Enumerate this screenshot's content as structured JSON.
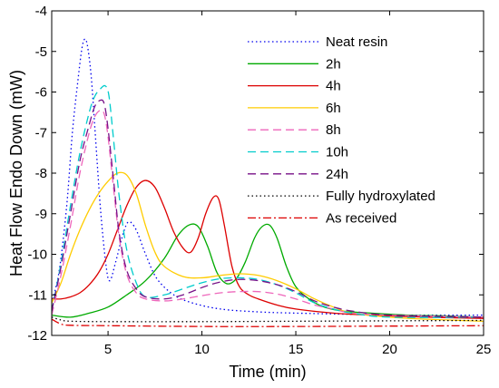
{
  "chart_data": {
    "type": "line",
    "xlabel": "Time (min)",
    "ylabel": "Heat Flow Endo Down (mW)",
    "xlim": [
      2,
      25
    ],
    "ylim": [
      -12,
      -4
    ],
    "xticks": [
      5,
      10,
      15,
      20,
      25
    ],
    "yticks": [
      -12,
      -11,
      -10,
      -9,
      -8,
      -7,
      -6,
      -5,
      -4
    ],
    "grid": false,
    "legend_position": "top-right",
    "series": [
      {
        "name": "Neat resin",
        "color": "#0000ee",
        "dash": "dotted",
        "x": [
          2,
          2.4,
          2.8,
          3.1,
          3.4,
          3.6,
          3.75,
          3.9,
          4.1,
          4.3,
          4.6,
          4.9,
          5.1,
          5.4,
          5.8,
          6.1,
          6.5,
          7.0,
          7.6,
          8.5,
          9.5,
          11,
          13,
          15,
          18,
          21,
          25
        ],
        "y": [
          -11.2,
          -10.4,
          -8.8,
          -7.0,
          -5.7,
          -4.95,
          -4.7,
          -4.85,
          -5.6,
          -6.9,
          -8.9,
          -10.3,
          -10.65,
          -10.2,
          -9.5,
          -9.2,
          -9.4,
          -10.0,
          -10.6,
          -11.0,
          -11.2,
          -11.35,
          -11.42,
          -11.45,
          -11.48,
          -11.5,
          -11.5
        ]
      },
      {
        "name": "2h",
        "color": "#00aa00",
        "dash": "solid",
        "x": [
          2,
          3,
          4,
          5,
          6,
          7,
          8,
          8.7,
          9.3,
          9.8,
          10.3,
          10.8,
          11.3,
          11.8,
          12.3,
          12.8,
          13.2,
          13.6,
          14.0,
          14.5,
          15,
          15.7,
          16.5,
          17.5,
          19,
          21,
          23,
          25
        ],
        "y": [
          -11.5,
          -11.55,
          -11.45,
          -11.3,
          -11.0,
          -10.65,
          -10.1,
          -9.55,
          -9.28,
          -9.32,
          -9.8,
          -10.45,
          -10.72,
          -10.62,
          -10.2,
          -9.6,
          -9.32,
          -9.28,
          -9.6,
          -10.3,
          -10.8,
          -11.1,
          -11.3,
          -11.4,
          -11.45,
          -11.5,
          -11.52,
          -11.55
        ]
      },
      {
        "name": "4h",
        "color": "#dd0000",
        "dash": "solid",
        "x": [
          2,
          2.5,
          3,
          3.5,
          4,
          4.5,
          5,
          5.5,
          6,
          6.5,
          7,
          7.5,
          8,
          8.5,
          9,
          9.4,
          9.8,
          10.2,
          10.6,
          10.9,
          11.2,
          11.6,
          12,
          12.5,
          13,
          14,
          15,
          17,
          19,
          22,
          25
        ],
        "y": [
          -11.1,
          -11.1,
          -11.05,
          -10.95,
          -10.75,
          -10.45,
          -10.0,
          -9.4,
          -8.8,
          -8.35,
          -8.18,
          -8.35,
          -8.85,
          -9.45,
          -9.85,
          -9.95,
          -9.6,
          -9.0,
          -8.6,
          -8.65,
          -9.3,
          -10.3,
          -10.8,
          -11.0,
          -11.1,
          -11.25,
          -11.35,
          -11.45,
          -11.5,
          -11.55,
          -11.58
        ]
      },
      {
        "name": "6h",
        "color": "#ffcc00",
        "dash": "solid",
        "x": [
          2,
          2.5,
          3,
          3.5,
          4,
          4.5,
          5,
          5.5,
          6,
          6.5,
          7,
          7.5,
          8,
          9,
          10,
          11,
          12,
          13,
          14,
          15,
          16,
          17,
          18,
          20,
          22,
          25
        ],
        "y": [
          -11.2,
          -10.7,
          -10.0,
          -9.4,
          -8.9,
          -8.5,
          -8.2,
          -8.0,
          -8.05,
          -8.5,
          -9.3,
          -9.95,
          -10.3,
          -10.55,
          -10.58,
          -10.52,
          -10.48,
          -10.52,
          -10.65,
          -10.85,
          -11.1,
          -11.3,
          -11.45,
          -11.55,
          -11.6,
          -11.65
        ]
      },
      {
        "name": "8h",
        "color": "#ee66bb",
        "dash": "dashed",
        "x": [
          2,
          2.5,
          3,
          3.5,
          4,
          4.3,
          4.6,
          4.8,
          5.0,
          5.3,
          5.6,
          6.0,
          6.5,
          7,
          8,
          9,
          10,
          11,
          12,
          13,
          14,
          15,
          16,
          17,
          18,
          20,
          25
        ],
        "y": [
          -11.5,
          -10.5,
          -9.3,
          -8.0,
          -7.0,
          -6.6,
          -6.45,
          -6.55,
          -7.1,
          -8.4,
          -9.6,
          -10.5,
          -10.95,
          -11.1,
          -11.15,
          -11.1,
          -11.02,
          -10.95,
          -10.92,
          -10.92,
          -10.98,
          -11.1,
          -11.25,
          -11.35,
          -11.45,
          -11.5,
          -11.55
        ]
      },
      {
        "name": "10h",
        "color": "#00cccc",
        "dash": "dashed",
        "x": [
          2,
          2.5,
          3,
          3.5,
          4,
          4.3,
          4.6,
          4.85,
          5.05,
          5.3,
          5.6,
          6.0,
          6.5,
          7,
          8,
          9,
          10,
          11,
          12,
          13,
          14,
          15,
          16,
          17,
          18,
          20,
          25
        ],
        "y": [
          -11.4,
          -10.2,
          -8.8,
          -7.5,
          -6.5,
          -6.1,
          -5.92,
          -5.85,
          -6.1,
          -7.2,
          -8.6,
          -9.9,
          -10.7,
          -11.05,
          -11.0,
          -10.85,
          -10.7,
          -10.6,
          -10.58,
          -10.62,
          -10.75,
          -10.95,
          -11.2,
          -11.35,
          -11.45,
          -11.55,
          -11.55
        ]
      },
      {
        "name": "24h",
        "color": "#771188",
        "dash": "dashed",
        "x": [
          2,
          2.5,
          3,
          3.5,
          4,
          4.3,
          4.6,
          4.8,
          5.0,
          5.3,
          5.6,
          6.0,
          6.5,
          7,
          8,
          9,
          10,
          11,
          12,
          13,
          14,
          15,
          16,
          17,
          18,
          20,
          25
        ],
        "y": [
          -11.4,
          -10.3,
          -9.0,
          -7.7,
          -6.8,
          -6.35,
          -6.2,
          -6.3,
          -6.9,
          -8.2,
          -9.5,
          -10.4,
          -10.85,
          -11.05,
          -11.1,
          -11.0,
          -10.82,
          -10.68,
          -10.62,
          -10.65,
          -10.75,
          -10.92,
          -11.15,
          -11.3,
          -11.4,
          -11.5,
          -11.55
        ]
      },
      {
        "name": "Fully hydroxylated",
        "color": "#000000",
        "dash": "dotted",
        "x": [
          2,
          2.5,
          3,
          5,
          10,
          15,
          20,
          25
        ],
        "y": [
          -11.55,
          -11.62,
          -11.65,
          -11.66,
          -11.66,
          -11.65,
          -11.64,
          -11.63
        ]
      },
      {
        "name": "As received",
        "color": "#dd0000",
        "dash": "dashdot",
        "x": [
          2,
          2.5,
          3,
          5,
          10,
          15,
          20,
          25
        ],
        "y": [
          -11.6,
          -11.72,
          -11.75,
          -11.76,
          -11.78,
          -11.78,
          -11.77,
          -11.76
        ]
      }
    ]
  }
}
